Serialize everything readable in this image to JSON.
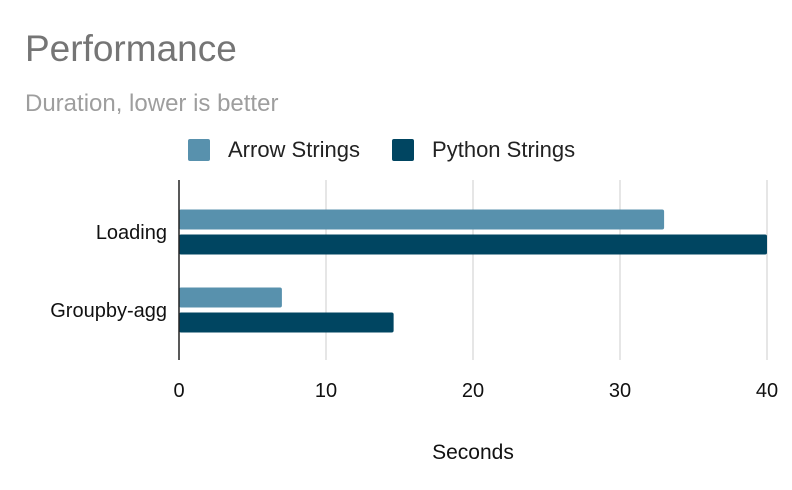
{
  "chart_data": {
    "type": "bar",
    "orientation": "horizontal",
    "title": "Performance",
    "subtitle": "Duration, lower is better",
    "categories": [
      "Loading",
      "Groupby-agg"
    ],
    "series": [
      {
        "name": "Arrow Strings",
        "color": "#5891ad",
        "values": [
          33,
          7
        ]
      },
      {
        "name": "Python Strings",
        "color": "#004561",
        "values": [
          40,
          14.6
        ]
      }
    ],
    "xlabel": "Seconds",
    "ylabel": "",
    "xlim": [
      0,
      40
    ],
    "xticks": [
      0,
      10,
      20,
      30,
      40
    ],
    "grid": "vertical",
    "legend_position": "top"
  }
}
